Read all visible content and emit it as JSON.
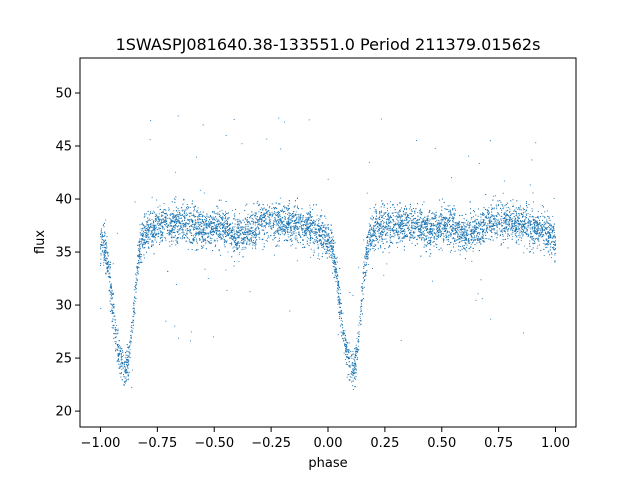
{
  "chart_data": {
    "type": "scatter",
    "title": "1SWASPJ081640.38-133551.0 Period 211379.01562s",
    "xlabel": "phase",
    "ylabel": "flux",
    "xlim": [
      -1.09,
      1.09
    ],
    "ylim": [
      18.5,
      53.3
    ],
    "xticks": [
      -1.0,
      -0.75,
      -0.5,
      -0.25,
      0.0,
      0.25,
      0.5,
      0.75,
      1.0
    ],
    "xtick_labels": [
      "−1.00",
      "−0.75",
      "−0.50",
      "−0.25",
      "0.00",
      "0.25",
      "0.50",
      "0.75",
      "1.00"
    ],
    "yticks": [
      20,
      25,
      30,
      35,
      40,
      45,
      50
    ],
    "ytick_labels": [
      "20",
      "25",
      "30",
      "35",
      "40",
      "45",
      "50"
    ],
    "grid": false,
    "legend": "none",
    "marker_color": "#1f77b4",
    "light_curve_profile": {
      "phase": [
        0.0,
        0.02,
        0.04,
        0.06,
        0.08,
        0.1,
        0.11,
        0.12,
        0.14,
        0.16,
        0.18,
        0.2,
        0.25,
        0.3,
        0.35,
        0.4,
        0.45,
        0.5,
        0.55,
        0.6,
        0.65,
        0.7,
        0.75,
        0.8,
        0.85,
        0.9,
        0.95,
        1.0
      ],
      "flux": [
        36.0,
        35.5,
        32.5,
        28.5,
        25.5,
        24.2,
        23.8,
        24.3,
        28.0,
        33.0,
        36.2,
        37.0,
        37.5,
        37.5,
        37.8,
        37.5,
        37.0,
        37.5,
        37.3,
        36.5,
        37.0,
        37.8,
        38.0,
        37.8,
        37.6,
        37.3,
        37.0,
        36.0
      ]
    },
    "scatter_noise": 0.9,
    "point_count": 5200,
    "outlier_count": 90
  }
}
